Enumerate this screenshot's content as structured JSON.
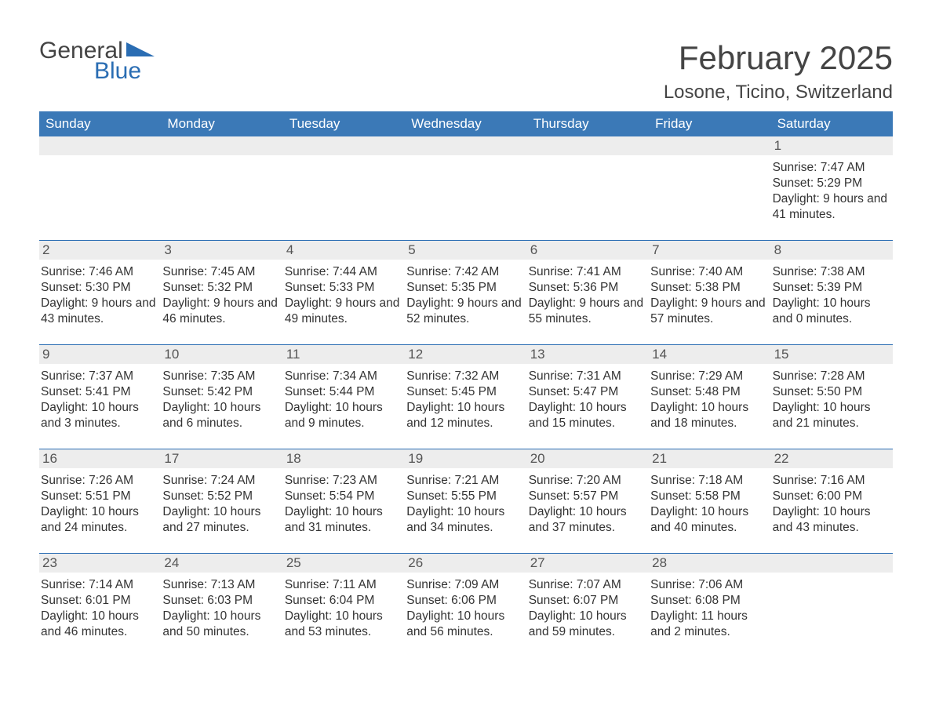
{
  "logo": {
    "text1": "General",
    "text2": "Blue"
  },
  "title": "February 2025",
  "location": "Losone, Ticino, Switzerland",
  "colors": {
    "header_bg": "#3b79b7",
    "header_text": "#ffffff",
    "daynum_bg": "#ededed",
    "week_border": "#2a6db3",
    "body_text": "#333333",
    "logo_blue": "#2a6db3"
  },
  "weekdays": [
    "Sunday",
    "Monday",
    "Tuesday",
    "Wednesday",
    "Thursday",
    "Friday",
    "Saturday"
  ],
  "weeks": [
    [
      null,
      null,
      null,
      null,
      null,
      null,
      {
        "n": "1",
        "sunrise": "7:47 AM",
        "sunset": "5:29 PM",
        "dl": "9 hours and 41 minutes."
      }
    ],
    [
      {
        "n": "2",
        "sunrise": "7:46 AM",
        "sunset": "5:30 PM",
        "dl": "9 hours and 43 minutes."
      },
      {
        "n": "3",
        "sunrise": "7:45 AM",
        "sunset": "5:32 PM",
        "dl": "9 hours and 46 minutes."
      },
      {
        "n": "4",
        "sunrise": "7:44 AM",
        "sunset": "5:33 PM",
        "dl": "9 hours and 49 minutes."
      },
      {
        "n": "5",
        "sunrise": "7:42 AM",
        "sunset": "5:35 PM",
        "dl": "9 hours and 52 minutes."
      },
      {
        "n": "6",
        "sunrise": "7:41 AM",
        "sunset": "5:36 PM",
        "dl": "9 hours and 55 minutes."
      },
      {
        "n": "7",
        "sunrise": "7:40 AM",
        "sunset": "5:38 PM",
        "dl": "9 hours and 57 minutes."
      },
      {
        "n": "8",
        "sunrise": "7:38 AM",
        "sunset": "5:39 PM",
        "dl": "10 hours and 0 minutes."
      }
    ],
    [
      {
        "n": "9",
        "sunrise": "7:37 AM",
        "sunset": "5:41 PM",
        "dl": "10 hours and 3 minutes."
      },
      {
        "n": "10",
        "sunrise": "7:35 AM",
        "sunset": "5:42 PM",
        "dl": "10 hours and 6 minutes."
      },
      {
        "n": "11",
        "sunrise": "7:34 AM",
        "sunset": "5:44 PM",
        "dl": "10 hours and 9 minutes."
      },
      {
        "n": "12",
        "sunrise": "7:32 AM",
        "sunset": "5:45 PM",
        "dl": "10 hours and 12 minutes."
      },
      {
        "n": "13",
        "sunrise": "7:31 AM",
        "sunset": "5:47 PM",
        "dl": "10 hours and 15 minutes."
      },
      {
        "n": "14",
        "sunrise": "7:29 AM",
        "sunset": "5:48 PM",
        "dl": "10 hours and 18 minutes."
      },
      {
        "n": "15",
        "sunrise": "7:28 AM",
        "sunset": "5:50 PM",
        "dl": "10 hours and 21 minutes."
      }
    ],
    [
      {
        "n": "16",
        "sunrise": "7:26 AM",
        "sunset": "5:51 PM",
        "dl": "10 hours and 24 minutes."
      },
      {
        "n": "17",
        "sunrise": "7:24 AM",
        "sunset": "5:52 PM",
        "dl": "10 hours and 27 minutes."
      },
      {
        "n": "18",
        "sunrise": "7:23 AM",
        "sunset": "5:54 PM",
        "dl": "10 hours and 31 minutes."
      },
      {
        "n": "19",
        "sunrise": "7:21 AM",
        "sunset": "5:55 PM",
        "dl": "10 hours and 34 minutes."
      },
      {
        "n": "20",
        "sunrise": "7:20 AM",
        "sunset": "5:57 PM",
        "dl": "10 hours and 37 minutes."
      },
      {
        "n": "21",
        "sunrise": "7:18 AM",
        "sunset": "5:58 PM",
        "dl": "10 hours and 40 minutes."
      },
      {
        "n": "22",
        "sunrise": "7:16 AM",
        "sunset": "6:00 PM",
        "dl": "10 hours and 43 minutes."
      }
    ],
    [
      {
        "n": "23",
        "sunrise": "7:14 AM",
        "sunset": "6:01 PM",
        "dl": "10 hours and 46 minutes."
      },
      {
        "n": "24",
        "sunrise": "7:13 AM",
        "sunset": "6:03 PM",
        "dl": "10 hours and 50 minutes."
      },
      {
        "n": "25",
        "sunrise": "7:11 AM",
        "sunset": "6:04 PM",
        "dl": "10 hours and 53 minutes."
      },
      {
        "n": "26",
        "sunrise": "7:09 AM",
        "sunset": "6:06 PM",
        "dl": "10 hours and 56 minutes."
      },
      {
        "n": "27",
        "sunrise": "7:07 AM",
        "sunset": "6:07 PM",
        "dl": "10 hours and 59 minutes."
      },
      {
        "n": "28",
        "sunrise": "7:06 AM",
        "sunset": "6:08 PM",
        "dl": "11 hours and 2 minutes."
      },
      null
    ]
  ],
  "labels": {
    "sunrise": "Sunrise: ",
    "sunset": "Sunset: ",
    "daylight": "Daylight: "
  }
}
